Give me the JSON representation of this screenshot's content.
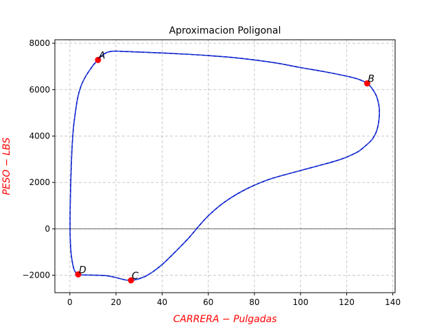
{
  "chart_data": {
    "type": "line",
    "title": "Aproximacion Poligonal",
    "xlabel": "CARRERA − Pulgadas",
    "ylabel": "PESO − LBS",
    "xlim": [
      -6.5,
      141
    ],
    "ylim": [
      -2750,
      8150
    ],
    "xticks": [
      0,
      20,
      40,
      60,
      80,
      100,
      120,
      140
    ],
    "yticks": [
      -2000,
      0,
      2000,
      4000,
      6000,
      8000
    ],
    "grid": true,
    "grid_style": "dashed",
    "zero_line": 0,
    "colors": {
      "curve_solid": "#0000cc",
      "curve_dashed": "#1f4fd0",
      "points": "#ff0000",
      "axis_labels": "#ff0000",
      "grid": "#c8c8c8"
    },
    "points": [
      {
        "label": "A",
        "x": 12.2,
        "y": 7280
      },
      {
        "label": "B",
        "x": 128.9,
        "y": 6270
      },
      {
        "label": "C",
        "x": 26.5,
        "y": -2220
      },
      {
        "label": "D",
        "x": 3.6,
        "y": -1960
      }
    ],
    "series": [
      {
        "x": [
          12.2,
          14,
          16,
          18,
          20,
          22,
          25,
          30,
          40,
          50,
          60,
          70,
          80,
          90,
          100,
          110,
          120,
          125,
          128.9,
          131,
          133,
          134,
          134.2,
          134,
          133.5,
          132.5,
          131,
          129,
          127,
          125,
          122,
          119,
          115,
          110,
          104,
          98,
          92,
          86,
          80,
          75,
          70,
          65,
          60,
          56,
          52,
          48,
          44,
          40,
          36,
          33,
          30,
          28,
          26.5,
          24,
          20,
          16,
          12,
          8,
          5,
          3.6,
          2,
          1,
          0.4,
          0.1,
          0.1,
          0.3,
          0.6,
          1,
          1.6,
          2.5,
          3.5,
          5,
          7,
          9,
          10.5,
          12.2
        ],
        "y": [
          7280,
          7480,
          7600,
          7650,
          7660,
          7650,
          7640,
          7620,
          7580,
          7530,
          7470,
          7390,
          7280,
          7140,
          6950,
          6780,
          6580,
          6450,
          6270,
          6050,
          5700,
          5300,
          5000,
          4700,
          4400,
          4100,
          3850,
          3650,
          3480,
          3330,
          3180,
          3050,
          2920,
          2780,
          2620,
          2460,
          2300,
          2120,
          1880,
          1640,
          1350,
          1000,
          560,
          130,
          -340,
          -760,
          -1160,
          -1540,
          -1850,
          -2030,
          -2150,
          -2200,
          -2220,
          -2200,
          -2100,
          -2020,
          -2000,
          -1990,
          -1985,
          -1960,
          -1800,
          -1400,
          -900,
          -200,
          700,
          1700,
          2700,
          3600,
          4400,
          5100,
          5700,
          6200,
          6600,
          6900,
          7100,
          7280
        ]
      }
    ]
  }
}
